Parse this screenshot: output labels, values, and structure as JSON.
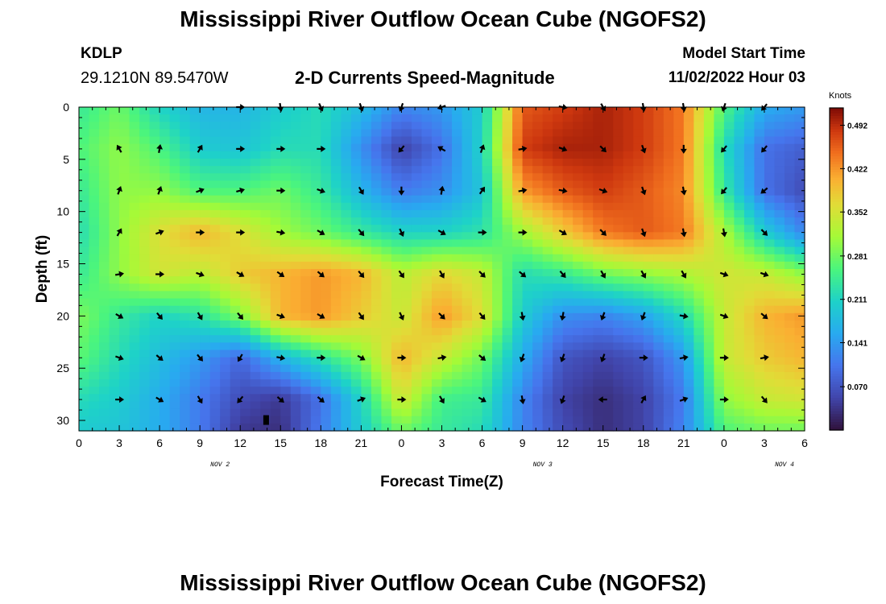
{
  "header": {
    "title": "Mississippi River Outflow Ocean Cube (NGOFS2)",
    "station": "KDLP",
    "coordinates": "29.1210N  89.5470W",
    "subtitle": "2-D Currents Speed-Magnitude",
    "model_start_label": "Model Start Time",
    "model_start_value": "11/02/2022 Hour 03"
  },
  "footer": {
    "title": "Mississippi River Outflow Ocean Cube (NGOFS2)"
  },
  "chart_data": {
    "type": "heatmap",
    "title": "2-D Currents Speed-Magnitude",
    "xlabel": "Forecast Time(Z)",
    "ylabel": "Depth (ft)",
    "x_tick_labels": [
      "0",
      "3",
      "6",
      "9",
      "12",
      "15",
      "18",
      "21",
      "0",
      "3",
      "6",
      "9",
      "12",
      "15",
      "18",
      "21",
      "0",
      "3",
      "6"
    ],
    "x_day_labels": [
      {
        "label": "NOV 2",
        "tick_index": 3.5
      },
      {
        "label": "NOV 3",
        "tick_index": 11.5
      },
      {
        "label": "NOV 4",
        "tick_index": 17.5
      }
    ],
    "y_ticks": [
      0,
      5,
      10,
      15,
      20,
      25,
      30
    ],
    "ylim": [
      0,
      31
    ],
    "colorbar": {
      "label": "Knots",
      "ticks": [
        "0.492",
        "0.422",
        "0.352",
        "0.281",
        "0.211",
        "0.141",
        "0.070"
      ],
      "range": [
        0.0,
        0.52
      ]
    },
    "depth_levels_ft": [
      0,
      4,
      8,
      12,
      16,
      20,
      24,
      28,
      31
    ],
    "times_h": [
      0,
      3,
      6,
      9,
      12,
      15,
      18,
      21,
      24,
      27,
      30,
      33,
      36,
      39,
      42,
      45,
      48,
      51,
      54
    ],
    "speed_knots": [
      [
        0.24,
        0.28,
        0.21,
        0.17,
        0.17,
        0.2,
        0.22,
        0.18,
        0.12,
        0.14,
        0.2,
        0.46,
        0.48,
        0.5,
        0.48,
        0.44,
        0.26,
        0.16,
        0.14
      ],
      [
        0.26,
        0.3,
        0.26,
        0.2,
        0.19,
        0.22,
        0.22,
        0.13,
        0.05,
        0.1,
        0.21,
        0.48,
        0.5,
        0.5,
        0.48,
        0.44,
        0.22,
        0.1,
        0.08
      ],
      [
        0.24,
        0.3,
        0.3,
        0.26,
        0.26,
        0.28,
        0.24,
        0.17,
        0.11,
        0.13,
        0.19,
        0.42,
        0.46,
        0.48,
        0.46,
        0.43,
        0.24,
        0.1,
        0.06
      ],
      [
        0.22,
        0.3,
        0.36,
        0.4,
        0.36,
        0.31,
        0.28,
        0.24,
        0.21,
        0.21,
        0.23,
        0.31,
        0.38,
        0.44,
        0.46,
        0.44,
        0.32,
        0.2,
        0.12
      ],
      [
        0.24,
        0.3,
        0.35,
        0.33,
        0.38,
        0.4,
        0.42,
        0.4,
        0.33,
        0.37,
        0.34,
        0.22,
        0.24,
        0.28,
        0.3,
        0.32,
        0.35,
        0.34,
        0.3
      ],
      [
        0.29,
        0.24,
        0.21,
        0.23,
        0.29,
        0.4,
        0.42,
        0.38,
        0.34,
        0.42,
        0.36,
        0.2,
        0.13,
        0.12,
        0.15,
        0.22,
        0.34,
        0.4,
        0.42
      ],
      [
        0.27,
        0.22,
        0.18,
        0.14,
        0.09,
        0.17,
        0.23,
        0.29,
        0.4,
        0.34,
        0.28,
        0.16,
        0.07,
        0.05,
        0.07,
        0.14,
        0.34,
        0.38,
        0.4
      ],
      [
        0.22,
        0.2,
        0.16,
        0.11,
        0.06,
        0.04,
        0.1,
        0.21,
        0.35,
        0.25,
        0.24,
        0.12,
        0.05,
        0.03,
        0.05,
        0.11,
        0.3,
        0.34,
        0.35
      ],
      [
        0.2,
        0.19,
        0.16,
        0.11,
        0.04,
        0.03,
        0.11,
        0.2,
        0.28,
        0.24,
        0.22,
        0.12,
        0.06,
        0.03,
        0.05,
        0.12,
        0.26,
        0.28,
        0.28
      ]
    ],
    "vector_depths_ft": [
      0,
      4,
      8,
      12,
      16,
      20,
      24,
      28
    ],
    "vector_directions_deg": [
      [
        null,
        null,
        null,
        null,
        90,
        170,
        155,
        160,
        200,
        250,
        null,
        null,
        100,
        150,
        170,
        170,
        200,
        220,
        null
      ],
      [
        null,
        330,
        10,
        30,
        90,
        90,
        90,
        null,
        220,
        300,
        20,
        80,
        110,
        135,
        160,
        180,
        220,
        220,
        null
      ],
      [
        null,
        20,
        20,
        70,
        75,
        90,
        110,
        150,
        180,
        10,
        35,
        80,
        100,
        110,
        160,
        170,
        220,
        230,
        null
      ],
      [
        60,
        30,
        70,
        90,
        90,
        100,
        120,
        140,
        155,
        120,
        90,
        90,
        120,
        135,
        160,
        170,
        170,
        135,
        null
      ],
      [
        90,
        80,
        90,
        110,
        120,
        125,
        130,
        140,
        145,
        150,
        135,
        130,
        140,
        150,
        150,
        150,
        110,
        110,
        110
      ],
      [
        120,
        120,
        140,
        150,
        140,
        110,
        120,
        145,
        155,
        135,
        140,
        170,
        190,
        200,
        200,
        100,
        110,
        130,
        null
      ],
      [
        110,
        110,
        130,
        140,
        210,
        100,
        90,
        120,
        90,
        80,
        130,
        200,
        200,
        200,
        90,
        80,
        90,
        80,
        null
      ],
      [
        90,
        90,
        120,
        150,
        220,
        130,
        130,
        70,
        90,
        150,
        120,
        170,
        200,
        270,
        30,
        70,
        90,
        140,
        null
      ]
    ]
  }
}
